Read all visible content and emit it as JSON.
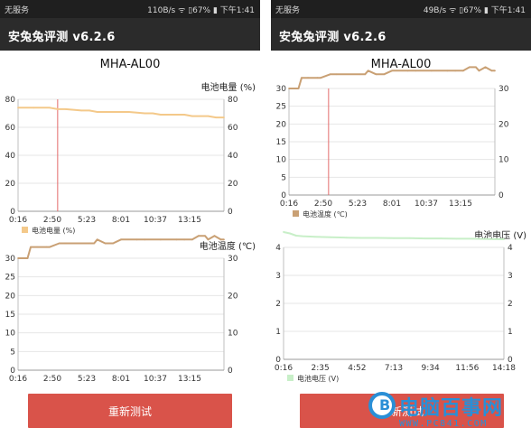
{
  "left": {
    "status": {
      "carrier": "无服务",
      "right": "110B/s ᯤ ▯67% ▮ 下午1:41"
    },
    "app_title": "安兔兔评测 v6.2.6",
    "device": "MHA-AL00",
    "retest_label": "重新测试"
  },
  "right": {
    "status": {
      "carrier": "无服务",
      "right": "49B/s ᯤ ▯67% ▮ 下午1:41"
    },
    "app_title": "安兔兔评测 v6.2.6",
    "device": "MHA-AL00",
    "retest_label": "重新测试"
  },
  "watermark": {
    "text": "电脑百事网",
    "url": "WWW.PC841.COM",
    "logo_letter": "B"
  },
  "colors": {
    "battery_level": "#f4c98a",
    "battery_temp": "#c9a074",
    "battery_voltage": "#c8efc8",
    "button": "#d9534a",
    "cursor": "#e36b6b",
    "grid": "#e6e6e6"
  },
  "chart_data": [
    {
      "id": "left-level",
      "type": "line",
      "title": "电池电量 (%)",
      "x_ticks": [
        "0:16",
        "2:50",
        "5:23",
        "8:01",
        "10:37",
        "13:15"
      ],
      "xlim": [
        0,
        13
      ],
      "ylim": [
        0,
        80
      ],
      "y_ticks": [
        0,
        20,
        40,
        60,
        80
      ],
      "y_ticks_right": [
        0,
        20,
        40,
        60,
        80
      ],
      "legend": "电池电量 (%)",
      "color": "#f4c98a",
      "cursor_x": 2.5,
      "series": [
        {
          "name": "电池电量 (%)",
          "x": [
            0,
            1,
            2,
            2.5,
            3,
            4,
            4.5,
            5,
            5.5,
            6,
            7,
            8,
            8.5,
            9,
            10,
            10.5,
            11,
            11.5,
            12,
            12.5,
            13
          ],
          "y": [
            74,
            74,
            74,
            73,
            73,
            72,
            72,
            71,
            71,
            71,
            71,
            70,
            70,
            69,
            69,
            69,
            68,
            68,
            68,
            67,
            67
          ]
        }
      ]
    },
    {
      "id": "left-temp",
      "type": "line",
      "title": "电池温度 (℃)",
      "x_ticks": [
        "0:16",
        "2:50",
        "5:23",
        "8:01",
        "10:37",
        "13:15"
      ],
      "xlim": [
        0,
        13
      ],
      "ylim": [
        0,
        30
      ],
      "y_ticks": [
        0,
        5,
        10,
        15,
        20,
        25,
        30
      ],
      "y_ticks_right": [
        0,
        10,
        20,
        30
      ],
      "legend": null,
      "color": "#c9a074",
      "cursor_x": null,
      "series": [
        {
          "name": "电池温度 (℃)",
          "x": [
            0,
            0.6,
            0.8,
            1.2,
            1.8,
            2.0,
            2.6,
            3.0,
            4.5,
            4.8,
            5.0,
            5.5,
            6.0,
            6.5,
            7.5,
            8.0,
            9.0,
            10.0,
            10.5,
            11.0,
            11.4,
            11.8,
            12.0,
            12.4,
            12.8,
            13.0
          ],
          "y": [
            30,
            30,
            33,
            33,
            33,
            33,
            34,
            34,
            34,
            34,
            35,
            34,
            34,
            35,
            35,
            35,
            35,
            35,
            35,
            35,
            36,
            36,
            35,
            36,
            35,
            35
          ]
        }
      ]
    },
    {
      "id": "right-temp",
      "type": "line",
      "title": null,
      "x_ticks": [
        "0:16",
        "2:50",
        "5:23",
        "8:01",
        "10:37",
        "13:15"
      ],
      "xlim": [
        0,
        13
      ],
      "ylim": [
        0,
        30
      ],
      "y_ticks": [
        0,
        5,
        10,
        15,
        20,
        25,
        30
      ],
      "y_ticks_right": [
        0,
        10,
        20,
        30
      ],
      "legend": "电池温度 (℃)",
      "color": "#c9a074",
      "cursor_x": 2.5,
      "series": [
        {
          "name": "电池温度 (℃)",
          "x": [
            0,
            0.6,
            0.8,
            1.2,
            1.8,
            2.0,
            2.6,
            3.0,
            4.5,
            4.8,
            5.0,
            5.5,
            6.0,
            6.5,
            7.5,
            8.0,
            9.0,
            10.0,
            10.5,
            11.0,
            11.4,
            11.8,
            12.0,
            12.4,
            12.8,
            13.0
          ],
          "y": [
            30,
            30,
            33,
            33,
            33,
            33,
            34,
            34,
            34,
            34,
            35,
            34,
            34,
            35,
            35,
            35,
            35,
            35,
            35,
            35,
            36,
            36,
            35,
            36,
            35,
            35
          ]
        }
      ]
    },
    {
      "id": "right-voltage",
      "type": "line",
      "title": "电池电压 (V)",
      "x_ticks": [
        "0:16",
        "2:35",
        "4:52",
        "7:13",
        "9:34",
        "11:56",
        "14:18"
      ],
      "xlim": [
        0,
        14
      ],
      "ylim": [
        0,
        4
      ],
      "y_ticks": [
        0,
        1,
        2,
        3,
        4
      ],
      "y_ticks_right": [
        0,
        1,
        2,
        3,
        4
      ],
      "legend": "电池电压 (V)",
      "color": "#c8efc8",
      "cursor_x": null,
      "series": [
        {
          "name": "电池电压 (V)",
          "x": [
            0,
            0.4,
            0.8,
            1.2,
            2,
            3,
            4,
            5,
            6,
            7,
            8,
            9,
            10,
            11,
            12,
            13,
            14
          ],
          "y": [
            4.55,
            4.5,
            4.42,
            4.4,
            4.38,
            4.36,
            4.35,
            4.34,
            4.34,
            4.33,
            4.33,
            4.32,
            4.32,
            4.31,
            4.31,
            4.3,
            4.29
          ]
        }
      ]
    }
  ]
}
